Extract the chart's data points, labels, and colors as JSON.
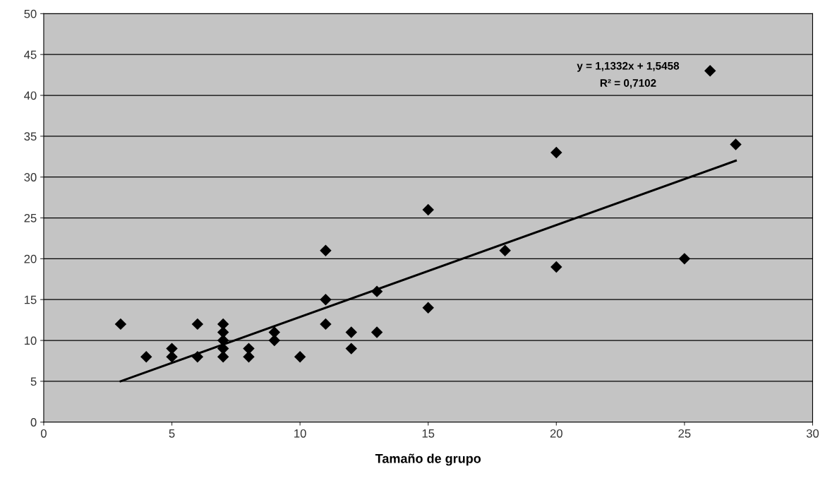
{
  "chart_data": {
    "type": "scatter",
    "xlabel": "Tamaño de grupo",
    "xlim": [
      0,
      30
    ],
    "xticks": [
      0,
      5,
      10,
      15,
      20,
      25,
      30
    ],
    "ylim": [
      0,
      50
    ],
    "yticks": [
      0,
      5,
      10,
      15,
      20,
      25,
      30,
      35,
      40,
      45,
      50
    ],
    "grid": "y",
    "legend": false,
    "marker": "diamond",
    "series": [
      {
        "color": "#000000",
        "x": [
          3,
          4,
          5,
          5,
          6,
          6,
          7,
          7,
          7,
          7,
          7,
          8,
          8,
          9,
          9,
          10,
          11,
          11,
          11,
          12,
          12,
          13,
          13,
          15,
          15,
          18,
          20,
          20,
          25,
          26,
          27
        ],
        "values": [
          12,
          8,
          8,
          9,
          12,
          8,
          12,
          11,
          10,
          9,
          8,
          9,
          8,
          11,
          10,
          8,
          21,
          15,
          12,
          11,
          9,
          16,
          11,
          26,
          14,
          21,
          33,
          19,
          20,
          43,
          34
        ]
      },
      {
        "type": "line",
        "color": "#000000",
        "x": [
          3,
          27
        ],
        "values": [
          5,
          32
        ],
        "marker": "none"
      }
    ],
    "annotations": [
      "y = 1,1332x + 1,5458",
      "R² = 0,7102"
    ]
  }
}
